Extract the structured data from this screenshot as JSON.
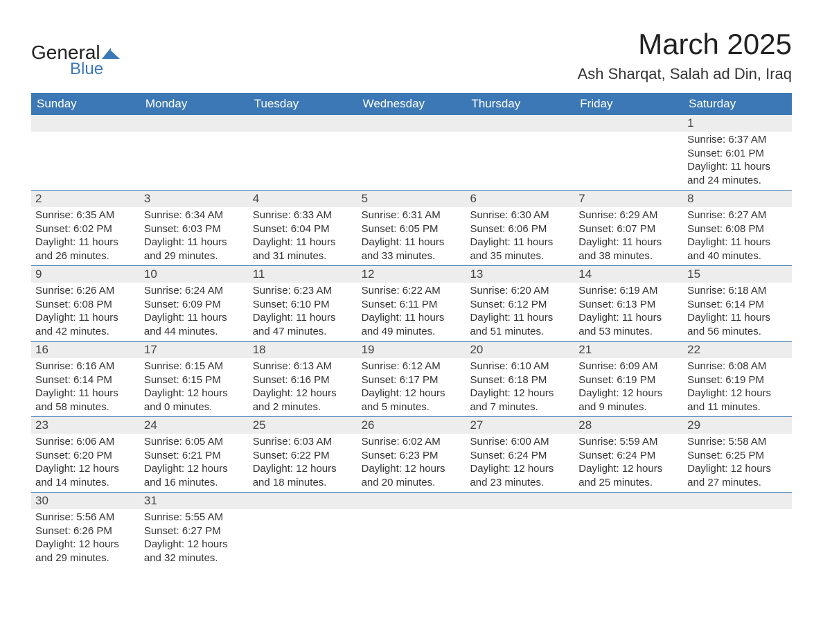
{
  "logo": {
    "word1": "General",
    "word2": "Blue",
    "flag_color": "#3b78b5"
  },
  "title": "March 2025",
  "location": "Ash Sharqat, Salah ad Din, Iraq",
  "colors": {
    "header_bg": "#3b78b5",
    "header_text": "#ffffff",
    "daynum_bg": "#ededed",
    "text": "#333333",
    "rule": "#3b78b5"
  },
  "day_headers": [
    "Sunday",
    "Monday",
    "Tuesday",
    "Wednesday",
    "Thursday",
    "Friday",
    "Saturday"
  ],
  "weeks": [
    [
      {
        "n": "",
        "lines": []
      },
      {
        "n": "",
        "lines": []
      },
      {
        "n": "",
        "lines": []
      },
      {
        "n": "",
        "lines": []
      },
      {
        "n": "",
        "lines": []
      },
      {
        "n": "",
        "lines": []
      },
      {
        "n": "1",
        "lines": [
          "Sunrise: 6:37 AM",
          "Sunset: 6:01 PM",
          "Daylight: 11 hours and 24 minutes."
        ]
      }
    ],
    [
      {
        "n": "2",
        "lines": [
          "Sunrise: 6:35 AM",
          "Sunset: 6:02 PM",
          "Daylight: 11 hours and 26 minutes."
        ]
      },
      {
        "n": "3",
        "lines": [
          "Sunrise: 6:34 AM",
          "Sunset: 6:03 PM",
          "Daylight: 11 hours and 29 minutes."
        ]
      },
      {
        "n": "4",
        "lines": [
          "Sunrise: 6:33 AM",
          "Sunset: 6:04 PM",
          "Daylight: 11 hours and 31 minutes."
        ]
      },
      {
        "n": "5",
        "lines": [
          "Sunrise: 6:31 AM",
          "Sunset: 6:05 PM",
          "Daylight: 11 hours and 33 minutes."
        ]
      },
      {
        "n": "6",
        "lines": [
          "Sunrise: 6:30 AM",
          "Sunset: 6:06 PM",
          "Daylight: 11 hours and 35 minutes."
        ]
      },
      {
        "n": "7",
        "lines": [
          "Sunrise: 6:29 AM",
          "Sunset: 6:07 PM",
          "Daylight: 11 hours and 38 minutes."
        ]
      },
      {
        "n": "8",
        "lines": [
          "Sunrise: 6:27 AM",
          "Sunset: 6:08 PM",
          "Daylight: 11 hours and 40 minutes."
        ]
      }
    ],
    [
      {
        "n": "9",
        "lines": [
          "Sunrise: 6:26 AM",
          "Sunset: 6:08 PM",
          "Daylight: 11 hours and 42 minutes."
        ]
      },
      {
        "n": "10",
        "lines": [
          "Sunrise: 6:24 AM",
          "Sunset: 6:09 PM",
          "Daylight: 11 hours and 44 minutes."
        ]
      },
      {
        "n": "11",
        "lines": [
          "Sunrise: 6:23 AM",
          "Sunset: 6:10 PM",
          "Daylight: 11 hours and 47 minutes."
        ]
      },
      {
        "n": "12",
        "lines": [
          "Sunrise: 6:22 AM",
          "Sunset: 6:11 PM",
          "Daylight: 11 hours and 49 minutes."
        ]
      },
      {
        "n": "13",
        "lines": [
          "Sunrise: 6:20 AM",
          "Sunset: 6:12 PM",
          "Daylight: 11 hours and 51 minutes."
        ]
      },
      {
        "n": "14",
        "lines": [
          "Sunrise: 6:19 AM",
          "Sunset: 6:13 PM",
          "Daylight: 11 hours and 53 minutes."
        ]
      },
      {
        "n": "15",
        "lines": [
          "Sunrise: 6:18 AM",
          "Sunset: 6:14 PM",
          "Daylight: 11 hours and 56 minutes."
        ]
      }
    ],
    [
      {
        "n": "16",
        "lines": [
          "Sunrise: 6:16 AM",
          "Sunset: 6:14 PM",
          "Daylight: 11 hours and 58 minutes."
        ]
      },
      {
        "n": "17",
        "lines": [
          "Sunrise: 6:15 AM",
          "Sunset: 6:15 PM",
          "Daylight: 12 hours and 0 minutes."
        ]
      },
      {
        "n": "18",
        "lines": [
          "Sunrise: 6:13 AM",
          "Sunset: 6:16 PM",
          "Daylight: 12 hours and 2 minutes."
        ]
      },
      {
        "n": "19",
        "lines": [
          "Sunrise: 6:12 AM",
          "Sunset: 6:17 PM",
          "Daylight: 12 hours and 5 minutes."
        ]
      },
      {
        "n": "20",
        "lines": [
          "Sunrise: 6:10 AM",
          "Sunset: 6:18 PM",
          "Daylight: 12 hours and 7 minutes."
        ]
      },
      {
        "n": "21",
        "lines": [
          "Sunrise: 6:09 AM",
          "Sunset: 6:19 PM",
          "Daylight: 12 hours and 9 minutes."
        ]
      },
      {
        "n": "22",
        "lines": [
          "Sunrise: 6:08 AM",
          "Sunset: 6:19 PM",
          "Daylight: 12 hours and 11 minutes."
        ]
      }
    ],
    [
      {
        "n": "23",
        "lines": [
          "Sunrise: 6:06 AM",
          "Sunset: 6:20 PM",
          "Daylight: 12 hours and 14 minutes."
        ]
      },
      {
        "n": "24",
        "lines": [
          "Sunrise: 6:05 AM",
          "Sunset: 6:21 PM",
          "Daylight: 12 hours and 16 minutes."
        ]
      },
      {
        "n": "25",
        "lines": [
          "Sunrise: 6:03 AM",
          "Sunset: 6:22 PM",
          "Daylight: 12 hours and 18 minutes."
        ]
      },
      {
        "n": "26",
        "lines": [
          "Sunrise: 6:02 AM",
          "Sunset: 6:23 PM",
          "Daylight: 12 hours and 20 minutes."
        ]
      },
      {
        "n": "27",
        "lines": [
          "Sunrise: 6:00 AM",
          "Sunset: 6:24 PM",
          "Daylight: 12 hours and 23 minutes."
        ]
      },
      {
        "n": "28",
        "lines": [
          "Sunrise: 5:59 AM",
          "Sunset: 6:24 PM",
          "Daylight: 12 hours and 25 minutes."
        ]
      },
      {
        "n": "29",
        "lines": [
          "Sunrise: 5:58 AM",
          "Sunset: 6:25 PM",
          "Daylight: 12 hours and 27 minutes."
        ]
      }
    ],
    [
      {
        "n": "30",
        "lines": [
          "Sunrise: 5:56 AM",
          "Sunset: 6:26 PM",
          "Daylight: 12 hours and 29 minutes."
        ]
      },
      {
        "n": "31",
        "lines": [
          "Sunrise: 5:55 AM",
          "Sunset: 6:27 PM",
          "Daylight: 12 hours and 32 minutes."
        ]
      },
      {
        "n": "",
        "lines": []
      },
      {
        "n": "",
        "lines": []
      },
      {
        "n": "",
        "lines": []
      },
      {
        "n": "",
        "lines": []
      },
      {
        "n": "",
        "lines": []
      }
    ]
  ]
}
